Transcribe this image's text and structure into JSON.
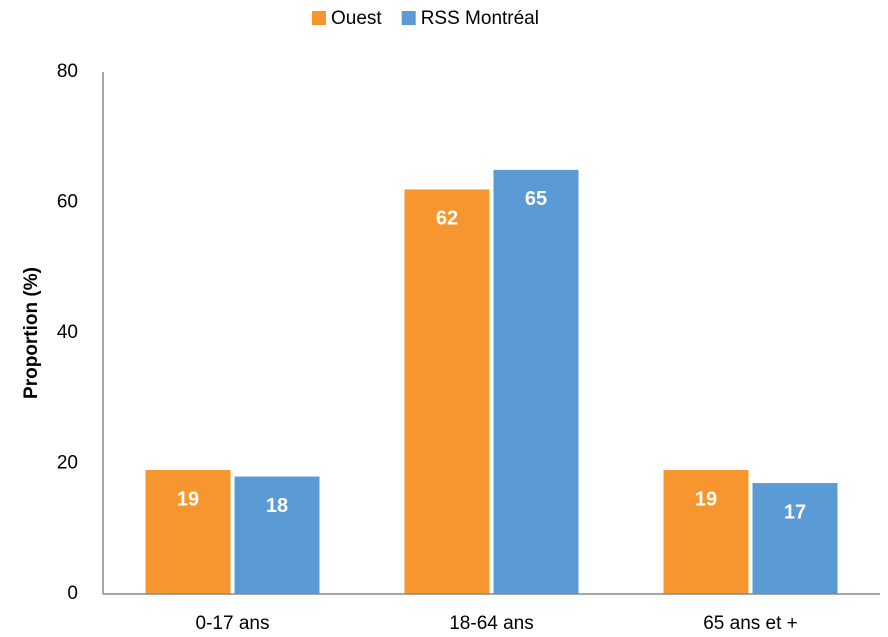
{
  "chart_data": {
    "type": "bar",
    "categories": [
      "0-17 ans",
      "18-64 ans",
      "65 ans et +"
    ],
    "series": [
      {
        "name": "Ouest",
        "color": "#f7962f",
        "values": [
          19,
          62,
          19
        ]
      },
      {
        "name": "RSS Montréal",
        "color": "#5b9bd5",
        "values": [
          18,
          65,
          17
        ]
      }
    ],
    "y_label": "Proportion (%)",
    "ylim": [
      0,
      80
    ],
    "yticks": [
      0,
      20,
      40,
      60,
      80
    ],
    "grid": false,
    "legend": "top"
  }
}
